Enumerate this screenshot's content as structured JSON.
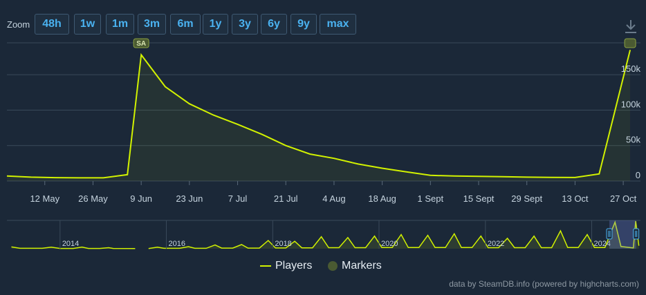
{
  "zoom": {
    "label": "Zoom",
    "buttons": [
      {
        "label": "48h",
        "active": false
      },
      {
        "label": "1w",
        "active": false
      },
      {
        "label": "1m",
        "active": false
      },
      {
        "label": "3m",
        "active": false
      },
      {
        "label": "6m",
        "active": true
      },
      {
        "label": "1y",
        "active": false
      },
      {
        "label": "3y",
        "active": false
      },
      {
        "label": "6y",
        "active": false
      },
      {
        "label": "9y",
        "active": false
      },
      {
        "label": "max",
        "active": false
      }
    ]
  },
  "download_icon": "download-icon",
  "chart_data": [
    {
      "type": "area",
      "title": "",
      "xlabel": "",
      "ylabel": "",
      "x_start": "2024-05-01",
      "x_end": "2024-11-01",
      "x_ticks": [
        "12 May",
        "26 May",
        "9 Jun",
        "23 Jun",
        "7 Jul",
        "21 Jul",
        "4 Aug",
        "18 Aug",
        "1 Sept",
        "15 Sept",
        "29 Sept",
        "13 Oct",
        "27 Oct"
      ],
      "x_tick_dates": [
        "2024-05-12",
        "2024-05-26",
        "2024-06-09",
        "2024-06-23",
        "2024-07-07",
        "2024-07-21",
        "2024-08-04",
        "2024-08-18",
        "2024-09-01",
        "2024-09-15",
        "2024-09-29",
        "2024-10-13",
        "2024-10-27"
      ],
      "ylim": [
        0,
        195000
      ],
      "y_ticks": [
        0,
        50000,
        100000,
        150000
      ],
      "y_tick_labels": [
        "0",
        "50k",
        "100k",
        "150k"
      ],
      "grid": true,
      "series": [
        {
          "name": "Players",
          "color": "#d2f200",
          "points": [
            [
              "2024-05-01",
              7000
            ],
            [
              "2024-05-08",
              5500
            ],
            [
              "2024-05-15",
              4800
            ],
            [
              "2024-05-22",
              4500
            ],
            [
              "2024-05-29",
              4500
            ],
            [
              "2024-06-05",
              9000
            ],
            [
              "2024-06-09",
              178000
            ],
            [
              "2024-06-16",
              133000
            ],
            [
              "2024-06-23",
              109000
            ],
            [
              "2024-06-30",
              93000
            ],
            [
              "2024-07-07",
              80000
            ],
            [
              "2024-07-14",
              66000
            ],
            [
              "2024-07-21",
              50000
            ],
            [
              "2024-07-28",
              38000
            ],
            [
              "2024-08-04",
              32000
            ],
            [
              "2024-08-11",
              24000
            ],
            [
              "2024-08-18",
              18000
            ],
            [
              "2024-08-25",
              13000
            ],
            [
              "2024-09-01",
              8000
            ],
            [
              "2024-09-08",
              7000
            ],
            [
              "2024-09-15",
              6500
            ],
            [
              "2024-09-22",
              6000
            ],
            [
              "2024-09-29",
              5500
            ],
            [
              "2024-10-06",
              5200
            ],
            [
              "2024-10-13",
              5000
            ],
            [
              "2024-10-20",
              10000
            ],
            [
              "2024-10-29",
              185000
            ]
          ]
        }
      ],
      "markers": [
        {
          "label": "SA",
          "date": "2024-06-09"
        },
        {
          "label": "",
          "date": "2024-10-29"
        }
      ]
    },
    {
      "type": "line",
      "title": "navigator",
      "xlabel": "",
      "ylabel": "",
      "x_start": "2013-01-01",
      "x_end": "2024-12-01",
      "x_ticks": [
        "2014",
        "2016",
        "2018",
        "2020",
        "2022",
        "2024"
      ],
      "x_tick_dates": [
        "2014-01-01",
        "2016-01-01",
        "2018-01-01",
        "2020-01-01",
        "2022-01-01",
        "2024-01-01"
      ],
      "ylim": [
        0,
        190000
      ],
      "series": [
        {
          "name": "Players",
          "color": "#d2f200",
          "points": [
            [
              "2013-02-01",
              12000
            ],
            [
              "2013-04-01",
              3000
            ],
            [
              "2013-09-01",
              3000
            ],
            [
              "2013-11-01",
              10000
            ],
            [
              "2014-01-01",
              2000
            ],
            [
              "2014-04-01",
              2000
            ],
            [
              "2014-06-01",
              11000
            ],
            [
              "2014-07-15",
              2000
            ],
            [
              "2014-10-01",
              2000
            ],
            [
              "2014-12-01",
              7000
            ],
            [
              "2015-01-01",
              2000
            ],
            [
              "2015-06-01",
              1500
            ],
            [
              "2015-06-02",
              null
            ],
            [
              "2015-09-01",
              1500
            ],
            [
              "2015-11-01",
              10000
            ],
            [
              "2015-12-15",
              3000
            ],
            [
              "2016-04-01",
              3000
            ],
            [
              "2016-06-01",
              14000
            ],
            [
              "2016-07-15",
              3000
            ],
            [
              "2016-10-01",
              3000
            ],
            [
              "2016-12-01",
              25000
            ],
            [
              "2017-01-15",
              4000
            ],
            [
              "2017-04-01",
              4000
            ],
            [
              "2017-06-01",
              28000
            ],
            [
              "2017-07-15",
              4000
            ],
            [
              "2017-10-01",
              4000
            ],
            [
              "2017-12-01",
              55000
            ],
            [
              "2018-01-20",
              5000
            ],
            [
              "2018-04-01",
              5000
            ],
            [
              "2018-06-01",
              50000
            ],
            [
              "2018-07-20",
              6000
            ],
            [
              "2018-10-01",
              6000
            ],
            [
              "2018-12-01",
              80000
            ],
            [
              "2019-01-20",
              7000
            ],
            [
              "2019-04-01",
              7000
            ],
            [
              "2019-06-01",
              75000
            ],
            [
              "2019-07-20",
              7000
            ],
            [
              "2019-10-01",
              7000
            ],
            [
              "2019-12-01",
              85000
            ],
            [
              "2020-01-20",
              8000
            ],
            [
              "2020-04-01",
              8000
            ],
            [
              "2020-06-01",
              95000
            ],
            [
              "2020-07-20",
              8000
            ],
            [
              "2020-10-01",
              8000
            ],
            [
              "2020-12-01",
              90000
            ],
            [
              "2021-01-20",
              8000
            ],
            [
              "2021-04-01",
              8000
            ],
            [
              "2021-06-01",
              100000
            ],
            [
              "2021-07-20",
              8000
            ],
            [
              "2021-10-01",
              8000
            ],
            [
              "2021-12-01",
              85000
            ],
            [
              "2022-01-20",
              7000
            ],
            [
              "2022-04-01",
              7000
            ],
            [
              "2022-06-01",
              70000
            ],
            [
              "2022-07-20",
              7000
            ],
            [
              "2022-10-01",
              7000
            ],
            [
              "2022-12-01",
              85000
            ],
            [
              "2023-01-20",
              7000
            ],
            [
              "2023-04-01",
              7000
            ],
            [
              "2023-06-01",
              120000
            ],
            [
              "2023-07-20",
              8000
            ],
            [
              "2023-10-01",
              8000
            ],
            [
              "2023-12-01",
              95000
            ],
            [
              "2024-01-20",
              8000
            ],
            [
              "2024-04-01",
              8000
            ],
            [
              "2024-06-09",
              178000
            ],
            [
              "2024-07-20",
              15000
            ],
            [
              "2024-10-13",
              5000
            ],
            [
              "2024-10-29",
              185000
            ],
            [
              "2024-11-20",
              20000
            ]
          ]
        }
      ],
      "selected_range": [
        "2024-05-01",
        "2024-11-01"
      ]
    }
  ],
  "legend": {
    "placement": "bottom-center",
    "items": [
      {
        "label": "Players",
        "color": "#d2f200",
        "symbol": "line"
      },
      {
        "label": "Markers",
        "color": "#4a5a32",
        "symbol": "dot"
      }
    ]
  },
  "credits": "data by SteamDB.info (powered by highcharts.com)"
}
